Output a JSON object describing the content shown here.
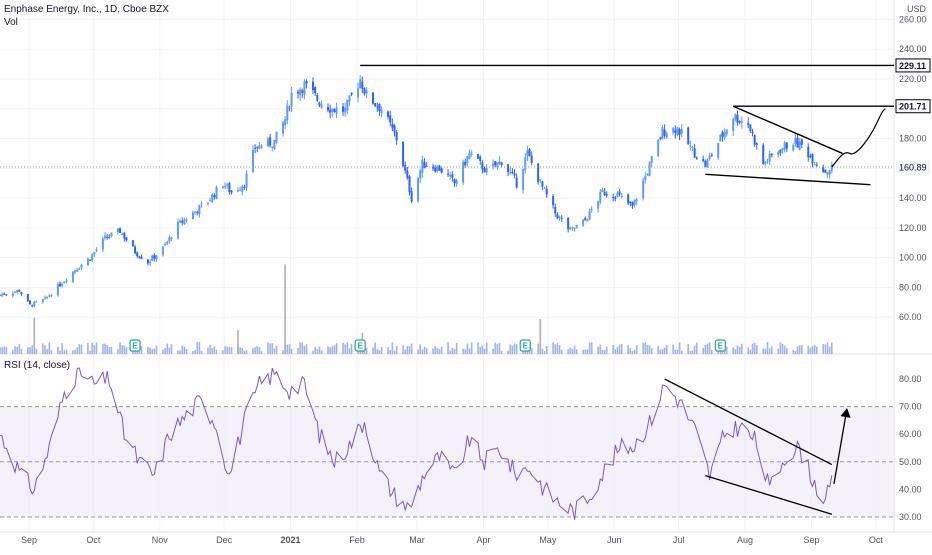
{
  "colors": {
    "bull": "#5b9cf6",
    "bear": "#2962ff",
    "volume": "#9fb4e8",
    "rsi_line": "#7e57c2",
    "rsi_band": "#ede7f6",
    "grid": "#f0f3fa",
    "axis_text": "#50535e",
    "drawing": "#000000"
  },
  "header": {
    "symbol_line": "Enphase Energy, Inc., 1D, Cboe BZX",
    "volume_label": "Vol",
    "rsi_label": "RSI (14, close)",
    "currency": "USD"
  },
  "chart_data": [
    {
      "type": "candlestick",
      "title": "Enphase Energy, Inc., 1D, Cboe BZX",
      "x_tick_labels": [
        "Sep",
        "Oct",
        "Nov",
        "Dec",
        "2021",
        "Feb",
        "Mar",
        "Apr",
        "May",
        "Jun",
        "Jul",
        "Aug",
        "Sep",
        "Oct"
      ],
      "y_tick_labels": [
        "60.00",
        "80.00",
        "100.00",
        "120.00",
        "140.00",
        "160.00",
        "180.00",
        "200.00",
        "220.00",
        "240.00",
        "260.00"
      ],
      "ylim": [
        40,
        265
      ],
      "price_labels": [
        {
          "value": 229.11,
          "text": "229.11",
          "style": "outline"
        },
        {
          "value": 201.71,
          "text": "201.71",
          "style": "outline"
        },
        {
          "value": 160.89,
          "text": "160.89",
          "style": "filled"
        }
      ],
      "close_path": [
        [
          "2020-08-25",
          75
        ],
        [
          "2020-09-03",
          78
        ],
        [
          "2020-09-08",
          68
        ],
        [
          "2020-09-15",
          72
        ],
        [
          "2020-09-22",
          82
        ],
        [
          "2020-09-29",
          92
        ],
        [
          "2020-10-06",
          100
        ],
        [
          "2020-10-13",
          113
        ],
        [
          "2020-10-20",
          118
        ],
        [
          "2020-10-27",
          104
        ],
        [
          "2020-11-02",
          97
        ],
        [
          "2020-11-09",
          106
        ],
        [
          "2020-11-16",
          122
        ],
        [
          "2020-11-23",
          130
        ],
        [
          "2020-11-30",
          138
        ],
        [
          "2020-12-07",
          150
        ],
        [
          "2020-12-11",
          144
        ],
        [
          "2020-12-17",
          150
        ],
        [
          "2020-12-22",
          174
        ],
        [
          "2020-12-31",
          178
        ],
        [
          "2021-01-05",
          193
        ],
        [
          "2021-01-08",
          210
        ],
        [
          "2021-01-14",
          216
        ],
        [
          "2021-01-21",
          205
        ],
        [
          "2021-01-27",
          200
        ],
        [
          "2021-02-02",
          199
        ],
        [
          "2021-02-09",
          220
        ],
        [
          "2021-02-12",
          209
        ],
        [
          "2021-02-19",
          200
        ],
        [
          "2021-02-26",
          180
        ],
        [
          "2021-03-05",
          140
        ],
        [
          "2021-03-10",
          163
        ],
        [
          "2021-03-18",
          160
        ],
        [
          "2021-03-25",
          150
        ],
        [
          "2021-04-01",
          170
        ],
        [
          "2021-04-09",
          158
        ],
        [
          "2021-04-16",
          165
        ],
        [
          "2021-04-23",
          150
        ],
        [
          "2021-04-28",
          170
        ],
        [
          "2021-05-04",
          150
        ],
        [
          "2021-05-11",
          130
        ],
        [
          "2021-05-18",
          118
        ],
        [
          "2021-05-25",
          125
        ],
        [
          "2021-06-02",
          144
        ],
        [
          "2021-06-09",
          142
        ],
        [
          "2021-06-16",
          134
        ],
        [
          "2021-06-23",
          158
        ],
        [
          "2021-06-30",
          185
        ],
        [
          "2021-07-07",
          187
        ],
        [
          "2021-07-14",
          172
        ],
        [
          "2021-07-20",
          162
        ],
        [
          "2021-07-27",
          180
        ],
        [
          "2021-08-02",
          195
        ],
        [
          "2021-08-09",
          190
        ],
        [
          "2021-08-16",
          163
        ],
        [
          "2021-08-23",
          172
        ],
        [
          "2021-08-30",
          178
        ],
        [
          "2021-09-03",
          175
        ],
        [
          "2021-09-09",
          165
        ],
        [
          "2021-09-14",
          158
        ],
        [
          "2021-09-17",
          160.89
        ]
      ],
      "volume_spikes": [
        [
          "2020-09-10",
          2.6
        ],
        [
          "2020-12-14",
          1.7
        ],
        [
          "2021-01-05",
          6.4
        ],
        [
          "2021-05-04",
          2.5
        ],
        [
          "2021-02-10",
          1.5
        ]
      ],
      "earnings_markers": [
        "2020-10-27",
        "2021-02-09",
        "2021-04-27",
        "2021-07-27"
      ],
      "drawings": [
        {
          "type": "horizontal-ray",
          "from": "2021-02-09",
          "to": "2021-10-15",
          "value": 229.11
        },
        {
          "type": "horizontal-ray",
          "from": "2021-08-02",
          "to": "2021-10-15",
          "value": 201.71
        },
        {
          "type": "trendline",
          "from": [
            "2021-08-02",
            201.71
          ],
          "to": [
            "2021-09-22",
            170
          ]
        },
        {
          "type": "trendline",
          "from": [
            "2021-07-20",
            156
          ],
          "to": [
            "2021-10-05",
            149
          ]
        },
        {
          "type": "curve",
          "from": [
            "2021-09-17",
            160.89
          ],
          "to": [
            "2021-10-12",
            200
          ]
        }
      ]
    },
    {
      "type": "line",
      "title": "RSI (14, close)",
      "y_tick_labels": [
        "30.00",
        "40.00",
        "50.00",
        "60.00",
        "70.00",
        "80.00"
      ],
      "ylim": [
        27,
        85
      ],
      "band": [
        30,
        70
      ],
      "midline": 50,
      "values": [
        [
          "2020-08-25",
          60
        ],
        [
          "2020-09-04",
          45
        ],
        [
          "2020-09-10",
          40
        ],
        [
          "2020-09-17",
          55
        ],
        [
          "2020-09-24",
          75
        ],
        [
          "2020-10-01",
          83
        ],
        [
          "2020-10-08",
          78
        ],
        [
          "2020-10-15",
          80
        ],
        [
          "2020-10-22",
          60
        ],
        [
          "2020-10-29",
          50
        ],
        [
          "2020-11-05",
          45
        ],
        [
          "2020-11-12",
          60
        ],
        [
          "2020-11-19",
          66
        ],
        [
          "2020-11-26",
          72
        ],
        [
          "2020-12-03",
          65
        ],
        [
          "2020-12-10",
          45
        ],
        [
          "2020-12-17",
          65
        ],
        [
          "2020-12-24",
          78
        ],
        [
          "2020-12-31",
          82
        ],
        [
          "2021-01-07",
          76
        ],
        [
          "2021-01-14",
          78
        ],
        [
          "2021-01-21",
          60
        ],
        [
          "2021-01-28",
          50
        ],
        [
          "2021-02-04",
          56
        ],
        [
          "2021-02-11",
          65
        ],
        [
          "2021-02-18",
          46
        ],
        [
          "2021-02-25",
          38
        ],
        [
          "2021-03-04",
          33
        ],
        [
          "2021-03-11",
          46
        ],
        [
          "2021-03-18",
          52
        ],
        [
          "2021-03-25",
          45
        ],
        [
          "2021-04-01",
          58
        ],
        [
          "2021-04-08",
          50
        ],
        [
          "2021-04-15",
          55
        ],
        [
          "2021-04-22",
          46
        ],
        [
          "2021-04-29",
          48
        ],
        [
          "2021-05-06",
          40
        ],
        [
          "2021-05-13",
          35
        ],
        [
          "2021-05-20",
          32
        ],
        [
          "2021-05-27",
          38
        ],
        [
          "2021-06-03",
          47
        ],
        [
          "2021-06-10",
          55
        ],
        [
          "2021-06-17",
          56
        ],
        [
          "2021-06-24",
          64
        ],
        [
          "2021-07-01",
          78
        ],
        [
          "2021-07-08",
          72
        ],
        [
          "2021-07-15",
          62
        ],
        [
          "2021-07-22",
          45
        ],
        [
          "2021-07-29",
          60
        ],
        [
          "2021-08-05",
          63
        ],
        [
          "2021-08-12",
          58
        ],
        [
          "2021-08-19",
          40
        ],
        [
          "2021-08-26",
          52
        ],
        [
          "2021-09-02",
          55
        ],
        [
          "2021-09-09",
          42
        ],
        [
          "2021-09-14",
          36
        ],
        [
          "2021-09-17",
          42
        ]
      ],
      "drawings": [
        {
          "type": "trendline",
          "from": [
            "2021-07-01",
            80
          ],
          "to": [
            "2021-09-17",
            49
          ]
        },
        {
          "type": "trendline",
          "from": [
            "2021-07-20",
            45
          ],
          "to": [
            "2021-09-17",
            31
          ]
        },
        {
          "type": "arrow",
          "from": [
            "2021-09-18",
            42
          ],
          "to": [
            "2021-09-24",
            69
          ]
        }
      ]
    }
  ]
}
